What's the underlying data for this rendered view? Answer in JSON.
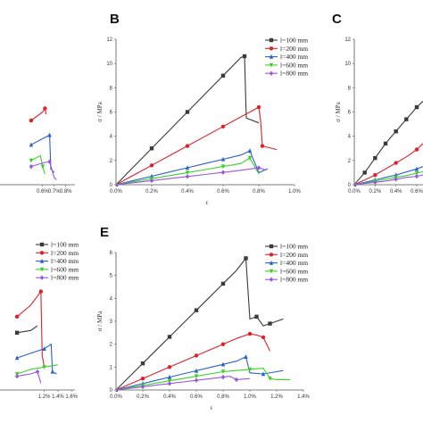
{
  "colors": {
    "l100": "#3a3a3a",
    "l200": "#e0202a",
    "l400": "#2a5fd1",
    "l600": "#3bd12a",
    "l800": "#9a55e0",
    "axis": "#555555"
  },
  "legend": [
    "l=100 mm",
    "l=200 mm",
    "l=400 mm",
    "l=600 mm",
    "l=800 mm"
  ],
  "chart_data": [
    {
      "id": "A",
      "type": "line",
      "letter": "",
      "xlabel": "",
      "ylabel": "",
      "xticks": [
        "0.6%",
        "0.7%",
        "0.8%"
      ],
      "xtick_values": [
        0.6,
        0.7,
        0.8
      ],
      "yticks": [],
      "xlim": [
        0.23,
        0.88
      ],
      "ylim": [
        0,
        12
      ],
      "series": [
        {
          "name": "l=200 mm",
          "x": [
            0.5,
            0.6,
            0.62,
            0.63
          ],
          "y": [
            5.3,
            6.0,
            6.3,
            5.8
          ]
        },
        {
          "name": "l=400 mm",
          "x": [
            0.5,
            0.62,
            0.66,
            0.67,
            0.7
          ],
          "y": [
            3.3,
            3.9,
            4.1,
            1.3,
            1.0
          ]
        },
        {
          "name": "l=600 mm",
          "x": [
            0.5,
            0.58,
            0.6,
            0.62
          ],
          "y": [
            2.0,
            2.4,
            1.5,
            0.9
          ]
        },
        {
          "name": "l=800 mm",
          "x": [
            0.5,
            0.6,
            0.66,
            0.7,
            0.72
          ],
          "y": [
            1.5,
            1.8,
            1.9,
            0.6,
            0.4
          ]
        }
      ]
    },
    {
      "id": "B",
      "type": "line",
      "letter": "B",
      "xlabel": "ε",
      "ylabel": "σ / MPa",
      "xticks": [
        "0.0%",
        "0.2%",
        "0.4%",
        "0.6%",
        "0.8%",
        "1.0%"
      ],
      "xtick_values": [
        0,
        0.2,
        0.4,
        0.6,
        0.8,
        1.0
      ],
      "yticks": [
        "0",
        "2",
        "4",
        "6",
        "8",
        "10",
        "12"
      ],
      "xlim": [
        0,
        1.0
      ],
      "ylim": [
        0,
        12
      ],
      "series": [
        {
          "name": "l=100 mm",
          "x": [
            0,
            0.1,
            0.2,
            0.3,
            0.4,
            0.5,
            0.6,
            0.7,
            0.72,
            0.73,
            0.8
          ],
          "y": [
            0,
            1.5,
            3.0,
            4.5,
            6.0,
            7.5,
            9.0,
            10.5,
            10.6,
            5.5,
            5.1
          ]
        },
        {
          "name": "l=200 mm",
          "x": [
            0,
            0.1,
            0.2,
            0.3,
            0.4,
            0.5,
            0.6,
            0.7,
            0.8,
            0.81,
            0.82,
            0.9
          ],
          "y": [
            0,
            0.8,
            1.6,
            2.4,
            3.2,
            4.0,
            4.8,
            5.6,
            6.4,
            5.3,
            3.2,
            2.9
          ]
        },
        {
          "name": "l=400 mm",
          "x": [
            0,
            0.1,
            0.2,
            0.3,
            0.4,
            0.5,
            0.6,
            0.7,
            0.75,
            0.8,
            0.85
          ],
          "y": [
            0,
            0.35,
            0.7,
            1.05,
            1.4,
            1.75,
            2.1,
            2.45,
            2.8,
            1.0,
            1.3
          ]
        },
        {
          "name": "l=600 mm",
          "x": [
            0,
            0.1,
            0.2,
            0.3,
            0.4,
            0.5,
            0.6,
            0.7,
            0.75,
            0.8
          ],
          "y": [
            0,
            0.25,
            0.5,
            0.75,
            1.0,
            1.25,
            1.5,
            1.75,
            2.2,
            0.9
          ]
        },
        {
          "name": "l=800 mm",
          "x": [
            0,
            0.1,
            0.2,
            0.3,
            0.4,
            0.5,
            0.6,
            0.7,
            0.8,
            0.84
          ],
          "y": [
            0,
            0.17,
            0.34,
            0.51,
            0.68,
            0.85,
            1.02,
            1.19,
            1.4,
            1.2
          ]
        }
      ]
    },
    {
      "id": "C",
      "type": "line",
      "letter": "C",
      "xlabel": "",
      "ylabel": "σ / MPa",
      "xticks": [
        "0.0%",
        "0.2%",
        "0.4%",
        "0.6%"
      ],
      "xtick_values": [
        0,
        0.2,
        0.4,
        0.6
      ],
      "yticks": [
        "0",
        "2",
        "4",
        "6",
        "8",
        "10",
        "12"
      ],
      "xlim": [
        0,
        0.66
      ],
      "ylim": [
        0,
        12
      ],
      "series": [
        {
          "name": "l=100 mm",
          "x": [
            0,
            0.05,
            0.1,
            0.15,
            0.2,
            0.25,
            0.3,
            0.35,
            0.4,
            0.45,
            0.5,
            0.55,
            0.6,
            0.66
          ],
          "y": [
            0,
            0.5,
            1.0,
            1.6,
            2.2,
            2.8,
            3.4,
            3.9,
            4.4,
            4.9,
            5.4,
            5.9,
            6.4,
            6.9
          ]
        },
        {
          "name": "l=200 mm",
          "x": [
            0,
            0.1,
            0.2,
            0.3,
            0.4,
            0.5,
            0.6,
            0.66
          ],
          "y": [
            0,
            0.4,
            0.8,
            1.3,
            1.8,
            2.3,
            2.9,
            3.4
          ]
        },
        {
          "name": "l=400 mm",
          "x": [
            0,
            0.1,
            0.2,
            0.3,
            0.4,
            0.5,
            0.6,
            0.66
          ],
          "y": [
            0,
            0.2,
            0.4,
            0.6,
            0.8,
            1.05,
            1.3,
            1.5
          ]
        },
        {
          "name": "l=600 mm",
          "x": [
            0,
            0.1,
            0.2,
            0.3,
            0.4,
            0.5,
            0.6,
            0.66
          ],
          "y": [
            0,
            0.15,
            0.3,
            0.45,
            0.6,
            0.75,
            0.95,
            1.1
          ]
        },
        {
          "name": "l=800 mm",
          "x": [
            0,
            0.1,
            0.2,
            0.3,
            0.4,
            0.5,
            0.6,
            0.66
          ],
          "y": [
            0,
            0.1,
            0.2,
            0.3,
            0.45,
            0.6,
            0.7,
            0.8
          ]
        }
      ]
    },
    {
      "id": "D",
      "type": "line",
      "letter": "",
      "xlabel": "",
      "ylabel": "",
      "xticks": [
        "1.2%",
        "1.4%",
        "1.6%"
      ],
      "xtick_values": [
        1.2,
        1.4,
        1.6
      ],
      "yticks": [],
      "xlim": [
        0.55,
        1.65
      ],
      "ylim": [
        0,
        6
      ],
      "series": [
        {
          "name": "l=100 mm",
          "x": [
            0.8,
            1.0,
            1.1
          ],
          "y": [
            2.5,
            2.6,
            2.8
          ]
        },
        {
          "name": "l=200 mm",
          "x": [
            0.8,
            1.0,
            1.15,
            1.17,
            1.2
          ],
          "y": [
            3.2,
            3.7,
            4.3,
            1.5,
            1.0
          ]
        },
        {
          "name": "l=400 mm",
          "x": [
            0.8,
            1.0,
            1.2,
            1.3,
            1.32,
            1.38
          ],
          "y": [
            1.4,
            1.6,
            1.8,
            2.0,
            0.8,
            0.7
          ]
        },
        {
          "name": "l=600 mm",
          "x": [
            0.8,
            1.0,
            1.2,
            1.4
          ],
          "y": [
            0.7,
            0.9,
            1.0,
            1.1
          ]
        },
        {
          "name": "l=800 mm",
          "x": [
            0.8,
            1.0,
            1.1,
            1.15
          ],
          "y": [
            0.6,
            0.7,
            0.8,
            0.3
          ]
        }
      ]
    },
    {
      "id": "E",
      "type": "line",
      "letter": "E",
      "xlabel": "ε",
      "ylabel": "σ / MPa",
      "xticks": [
        "0.0%",
        "0.2%",
        "0.4%",
        "0.6%",
        "0.8%",
        "1.0%",
        "1.2%",
        "1.4%"
      ],
      "xtick_values": [
        0,
        0.2,
        0.4,
        0.6,
        0.8,
        1.0,
        1.2,
        1.4
      ],
      "yticks": [
        "0",
        "1",
        "2",
        "3",
        "4",
        "5",
        "6"
      ],
      "xlim": [
        0,
        1.4
      ],
      "ylim": [
        0,
        6
      ],
      "series": [
        {
          "name": "l=100 mm",
          "x": [
            0,
            0.1,
            0.2,
            0.3,
            0.4,
            0.5,
            0.6,
            0.7,
            0.8,
            0.9,
            0.97,
            1.0,
            1.05,
            1.1,
            1.15,
            1.2,
            1.25
          ],
          "y": [
            0,
            0.58,
            1.16,
            1.74,
            2.32,
            2.9,
            3.48,
            4.06,
            4.64,
            5.22,
            5.75,
            3.1,
            3.2,
            2.8,
            2.9,
            3.0,
            3.1
          ]
        },
        {
          "name": "l=200 mm",
          "x": [
            0,
            0.1,
            0.2,
            0.3,
            0.4,
            0.5,
            0.6,
            0.7,
            0.8,
            0.9,
            1.0,
            1.05,
            1.1,
            1.15
          ],
          "y": [
            0,
            0.25,
            0.5,
            0.75,
            1.0,
            1.25,
            1.5,
            1.75,
            2.0,
            2.25,
            2.45,
            2.4,
            2.3,
            1.7
          ]
        },
        {
          "name": "l=400 mm",
          "x": [
            0,
            0.1,
            0.2,
            0.3,
            0.4,
            0.5,
            0.6,
            0.7,
            0.8,
            0.9,
            0.97,
            1.0,
            1.1,
            1.2,
            1.25
          ],
          "y": [
            0,
            0.14,
            0.28,
            0.42,
            0.56,
            0.7,
            0.84,
            0.98,
            1.12,
            1.26,
            1.45,
            0.75,
            0.7,
            0.8,
            0.85
          ]
        },
        {
          "name": "l=600 mm",
          "x": [
            0,
            0.1,
            0.2,
            0.3,
            0.4,
            0.5,
            0.6,
            0.7,
            0.8,
            0.9,
            1.0,
            1.1,
            1.15,
            1.2,
            1.3
          ],
          "y": [
            0,
            0.1,
            0.2,
            0.3,
            0.4,
            0.5,
            0.6,
            0.7,
            0.8,
            0.85,
            0.9,
            0.95,
            0.5,
            0.45,
            0.45
          ]
        },
        {
          "name": "l=800 mm",
          "x": [
            0,
            0.1,
            0.2,
            0.3,
            0.4,
            0.5,
            0.6,
            0.7,
            0.8,
            0.85,
            0.9,
            1.0
          ],
          "y": [
            0,
            0.07,
            0.14,
            0.21,
            0.28,
            0.35,
            0.42,
            0.49,
            0.56,
            0.6,
            0.45,
            0.5
          ]
        }
      ]
    }
  ]
}
